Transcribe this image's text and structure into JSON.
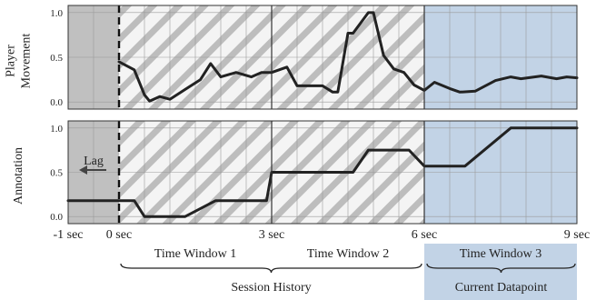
{
  "chart_data": {
    "type": "line",
    "x_ticks": [
      {
        "value": -1,
        "label": "-1 sec"
      },
      {
        "value": 0,
        "label": "0 sec"
      },
      {
        "value": 3,
        "label": "3 sec"
      },
      {
        "value": 6,
        "label": "6 sec"
      },
      {
        "value": 9,
        "label": "9 sec"
      }
    ],
    "xlim": [
      -1,
      9
    ],
    "regions": {
      "lag": {
        "range": [
          -1,
          0
        ],
        "color": "#c0c0c0",
        "label": "Lag"
      },
      "history": {
        "range": [
          0,
          6
        ],
        "pattern": "diagonal-hatch"
      },
      "current": {
        "range": [
          6,
          9
        ],
        "color": "#c2d3e6"
      }
    },
    "windows": [
      {
        "label": "Time Window 1",
        "range": [
          0,
          3
        ]
      },
      {
        "label": "Time Window 2",
        "range": [
          3,
          6
        ]
      },
      {
        "label": "Time Window 3",
        "range": [
          6,
          9
        ]
      }
    ],
    "braces": [
      {
        "label": "Session History",
        "range": [
          0,
          6
        ]
      },
      {
        "label": "Current Datapoint",
        "range": [
          6,
          9
        ]
      }
    ],
    "panels": [
      {
        "ylabel_lines": [
          "Player",
          "Movement"
        ],
        "ylim": [
          -0.08,
          1.08
        ],
        "yticks": [
          {
            "value": 0,
            "label": "0.0"
          },
          {
            "value": 0.5,
            "label": "0.5"
          },
          {
            "value": 1,
            "label": "1.0"
          }
        ],
        "x": [
          0,
          0.3,
          0.5,
          0.6,
          0.8,
          1.0,
          1.3,
          1.6,
          1.8,
          2.0,
          2.3,
          2.6,
          2.8,
          3.0,
          3.3,
          3.5,
          3.6,
          3.7,
          4.0,
          4.2,
          4.3,
          4.5,
          4.6,
          4.9,
          5.0,
          5.2,
          5.4,
          5.6,
          5.8,
          6.0,
          6.2,
          6.5,
          6.7,
          7.0,
          7.4,
          7.7,
          7.9,
          8.3,
          8.6,
          8.8,
          9.0
        ],
        "y": [
          0.45,
          0.36,
          0.08,
          0.01,
          0.06,
          0.03,
          0.14,
          0.25,
          0.43,
          0.28,
          0.33,
          0.28,
          0.33,
          0.33,
          0.39,
          0.18,
          0.18,
          0.18,
          0.18,
          0.11,
          0.11,
          0.77,
          0.77,
          1.0,
          1.0,
          0.52,
          0.37,
          0.33,
          0.19,
          0.13,
          0.22,
          0.15,
          0.11,
          0.12,
          0.24,
          0.28,
          0.26,
          0.29,
          0.26,
          0.28,
          0.27
        ]
      },
      {
        "ylabel_lines": [
          "Annotation"
        ],
        "ylim": [
          -0.08,
          1.08
        ],
        "yticks": [
          {
            "value": 0,
            "label": "0.0"
          },
          {
            "value": 0.5,
            "label": "0.5"
          },
          {
            "value": 1,
            "label": "1.0"
          }
        ],
        "x": [
          -1,
          0,
          0.3,
          0.5,
          1.3,
          1.9,
          2.5,
          2.9,
          3.0,
          4.6,
          4.9,
          5.7,
          6.0,
          6.8,
          7.7,
          9.0
        ],
        "y": [
          0.18,
          0.18,
          0.18,
          0.0,
          0.0,
          0.18,
          0.18,
          0.18,
          0.5,
          0.5,
          0.75,
          0.75,
          0.57,
          0.57,
          1.0,
          1.0
        ]
      }
    ]
  }
}
